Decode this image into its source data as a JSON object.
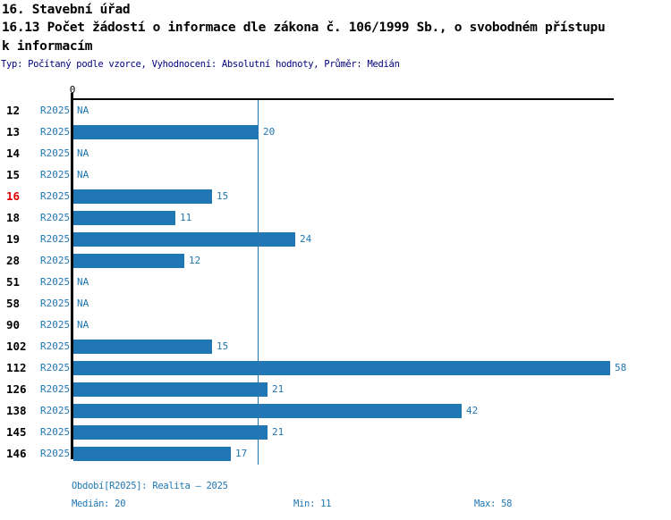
{
  "header": {
    "line1": "16. Stavební úřad",
    "line2": "16.13 Počet žádostí o informace dle zákona č. 106/1999 Sb., o svobodném přístupu",
    "line3": "k informacím",
    "meta": "Typ: Počítaný podle vzorce, Vyhodnocení: Absolutní hodnoty, Průměr: Medián"
  },
  "colors": {
    "bar": "#2077b4",
    "blue_text": "#1f77b4",
    "meta_text": "#000080",
    "highlight_text": "#e00000",
    "axis": "#000000"
  },
  "chart_data": {
    "type": "bar",
    "orientation": "horizontal",
    "title": "16.13 Počet žádostí o informace dle zákona č. 106/1999 Sb., o svobodném přístupu k informacím",
    "series_label": "R2025",
    "axis_zero_label": "0",
    "na_label": "NA",
    "xlim": [
      0,
      58
    ],
    "grid": false,
    "legend": "none",
    "categories": [
      "12",
      "13",
      "14",
      "15",
      "16",
      "18",
      "19",
      "28",
      "51",
      "58",
      "90",
      "102",
      "112",
      "126",
      "138",
      "145",
      "146"
    ],
    "values": [
      null,
      20,
      null,
      null,
      15,
      11,
      24,
      12,
      null,
      null,
      null,
      15,
      58,
      21,
      42,
      21,
      17
    ],
    "highlighted_category": "16",
    "median_line_value": 20,
    "stats": {
      "median": 20,
      "min": 11,
      "max": 58
    }
  },
  "footer": {
    "period": "Období[R2025]: Realita – 2025",
    "median": "Medián: 20",
    "min": "Min: 11",
    "max": "Max: 58"
  }
}
